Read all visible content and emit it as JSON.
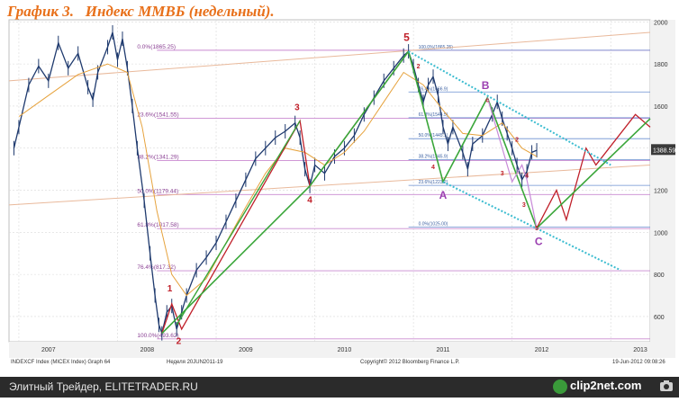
{
  "title": "График 3.   Индекс ММВБ (недельный).",
  "footer": {
    "left_text": "Элитный Трейдер, ELITETRADER.RU",
    "brand": "clip2net.com"
  },
  "chart_data": {
    "type": "line",
    "y_ticks": [
      600,
      800,
      1000,
      1200,
      1400,
      1600,
      1800,
      2000
    ],
    "ylim": [
      480,
      2010
    ],
    "x_ticks": [
      "2007",
      "2008",
      "2009",
      "2010",
      "2011",
      "2012",
      "2013"
    ],
    "last_value_label": "1388.59",
    "bottom_left": "INDEXCF Index (MICEX Index) Graph 64",
    "bottom_mid": "Неделя 20JUN2011-19",
    "bottom_copy": "Copyright© 2012 Bloomberg Finance L.P.",
    "bottom_date": "19-Jun-2012 09:08:26",
    "fib_levels_left": [
      {
        "label": "0.0%(1865.25)",
        "value": 1865.25
      },
      {
        "label": "23.6%(1541.55)",
        "value": 1541.55
      },
      {
        "label": "38.2%(1341.29)",
        "value": 1341.29
      },
      {
        "label": "50.0%(1179.44)",
        "value": 1179.44
      },
      {
        "label": "61.8%(1017.58)",
        "value": 1017.58
      },
      {
        "label": "76.4%(817.32)",
        "value": 817.32
      },
      {
        "label": "100.0%(493.62)",
        "value": 493.62
      }
    ],
    "fib_levels_right": [
      {
        "label": "100.0%(1865.25)",
        "value": 1865.25
      },
      {
        "label": "76.4%(1666.9)",
        "value": 1666.9
      },
      {
        "label": "61.8%(1544.5)",
        "value": 1544.5
      },
      {
        "label": "50.0%(1445.1)",
        "value": 1445.1
      },
      {
        "label": "38.2%(1345.9)",
        "value": 1345.9
      },
      {
        "label": "23.6%(1223.2)",
        "value": 1223.2
      },
      {
        "label": "0.0%(1025.00)",
        "value": 1025.0
      }
    ],
    "wave_labels": [
      {
        "text": "1",
        "color": "#c0202a"
      },
      {
        "text": "2",
        "color": "#c0202a"
      },
      {
        "text": "3",
        "color": "#c0202a"
      },
      {
        "text": "4",
        "color": "#c0202a"
      },
      {
        "text": "5",
        "color": "#c0202a"
      },
      {
        "text": "A",
        "color": "#9b3fb0"
      },
      {
        "text": "B",
        "color": "#9b3fb0"
      },
      {
        "text": "C",
        "color": "#9b3fb0"
      },
      {
        "text": "2",
        "color": "#c0202a"
      },
      {
        "text": "4",
        "color": "#c0202a"
      },
      {
        "text": "3",
        "color": "#c0202a"
      },
      {
        "text": "c",
        "color": "#c0202a"
      },
      {
        "text": "2",
        "color": "#c0202a"
      },
      {
        "text": "4",
        "color": "#c0202a"
      },
      {
        "text": "3",
        "color": "#c0202a"
      },
      {
        "text": "5",
        "color": "#c0202a"
      }
    ],
    "price_series": [
      [
        2006.95,
        1400
      ],
      [
        2007.0,
        1500
      ],
      [
        2007.1,
        1700
      ],
      [
        2007.2,
        1790
      ],
      [
        2007.3,
        1720
      ],
      [
        2007.4,
        1900
      ],
      [
        2007.5,
        1780
      ],
      [
        2007.6,
        1850
      ],
      [
        2007.7,
        1690
      ],
      [
        2007.75,
        1630
      ],
      [
        2007.8,
        1760
      ],
      [
        2007.9,
        1880
      ],
      [
        2007.95,
        1950
      ],
      [
        2008.0,
        1820
      ],
      [
        2008.05,
        1920
      ],
      [
        2008.1,
        1780
      ],
      [
        2008.15,
        1600
      ],
      [
        2008.2,
        1400
      ],
      [
        2008.27,
        1150
      ],
      [
        2008.33,
        900
      ],
      [
        2008.38,
        700
      ],
      [
        2008.42,
        560
      ],
      [
        2008.45,
        520
      ],
      [
        2008.5,
        620
      ],
      [
        2008.55,
        650
      ],
      [
        2008.6,
        540
      ],
      [
        2008.65,
        620
      ],
      [
        2008.7,
        700
      ],
      [
        2008.8,
        820
      ],
      [
        2008.9,
        880
      ],
      [
        2009.0,
        950
      ],
      [
        2009.1,
        1050
      ],
      [
        2009.2,
        1150
      ],
      [
        2009.3,
        1250
      ],
      [
        2009.4,
        1350
      ],
      [
        2009.5,
        1400
      ],
      [
        2009.6,
        1450
      ],
      [
        2009.7,
        1480
      ],
      [
        2009.8,
        1520
      ],
      [
        2009.85,
        1450
      ],
      [
        2009.9,
        1300
      ],
      [
        2009.95,
        1220
      ],
      [
        2010.0,
        1320
      ],
      [
        2010.1,
        1280
      ],
      [
        2010.2,
        1360
      ],
      [
        2010.3,
        1400
      ],
      [
        2010.4,
        1460
      ],
      [
        2010.5,
        1560
      ],
      [
        2010.6,
        1640
      ],
      [
        2010.7,
        1720
      ],
      [
        2010.8,
        1780
      ],
      [
        2010.9,
        1840
      ],
      [
        2010.95,
        1860
      ],
      [
        2011.0,
        1790
      ],
      [
        2011.05,
        1700
      ],
      [
        2011.1,
        1620
      ],
      [
        2011.15,
        1700
      ],
      [
        2011.2,
        1740
      ],
      [
        2011.25,
        1650
      ],
      [
        2011.3,
        1500
      ],
      [
        2011.35,
        1420
      ],
      [
        2011.4,
        1500
      ],
      [
        2011.5,
        1380
      ],
      [
        2011.55,
        1300
      ],
      [
        2011.6,
        1420
      ],
      [
        2011.7,
        1460
      ],
      [
        2011.8,
        1560
      ],
      [
        2011.85,
        1620
      ],
      [
        2011.9,
        1540
      ],
      [
        2011.95,
        1470
      ],
      [
        2012.0,
        1400
      ],
      [
        2012.05,
        1320
      ],
      [
        2012.1,
        1250
      ],
      [
        2012.15,
        1290
      ],
      [
        2012.2,
        1380
      ],
      [
        2012.25,
        1390
      ]
    ],
    "ma_series": [
      [
        2007.0,
        1550
      ],
      [
        2007.3,
        1650
      ],
      [
        2007.6,
        1750
      ],
      [
        2007.9,
        1800
      ],
      [
        2008.1,
        1760
      ],
      [
        2008.25,
        1500
      ],
      [
        2008.4,
        1100
      ],
      [
        2008.55,
        800
      ],
      [
        2008.7,
        700
      ],
      [
        2008.9,
        780
      ],
      [
        2009.1,
        950
      ],
      [
        2009.3,
        1120
      ],
      [
        2009.5,
        1280
      ],
      [
        2009.7,
        1400
      ],
      [
        2009.9,
        1380
      ],
      [
        2010.1,
        1320
      ],
      [
        2010.3,
        1380
      ],
      [
        2010.5,
        1480
      ],
      [
        2010.7,
        1620
      ],
      [
        2010.9,
        1760
      ],
      [
        2011.1,
        1700
      ],
      [
        2011.3,
        1580
      ],
      [
        2011.5,
        1470
      ],
      [
        2011.7,
        1460
      ],
      [
        2011.9,
        1520
      ],
      [
        2012.1,
        1400
      ],
      [
        2012.25,
        1360
      ]
    ]
  }
}
